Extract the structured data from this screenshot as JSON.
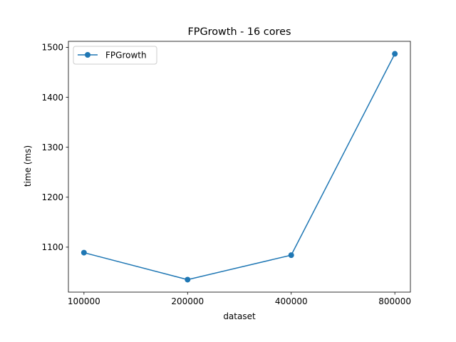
{
  "chart_data": {
    "type": "line",
    "title": "FPGrowth - 16 cores",
    "xlabel": "dataset",
    "ylabel": "time (ms)",
    "categories": [
      "100000",
      "200000",
      "400000",
      "800000"
    ],
    "series": [
      {
        "name": "FPGrowth",
        "values": [
          1089,
          1035,
          1084,
          1487
        ],
        "color": "#1f77b4",
        "marker": "circle"
      }
    ],
    "ylim": [
      1010,
      1512
    ],
    "yticks": [
      1100,
      1200,
      1300,
      1400,
      1500
    ],
    "grid": false,
    "legend_position": "upper left"
  }
}
